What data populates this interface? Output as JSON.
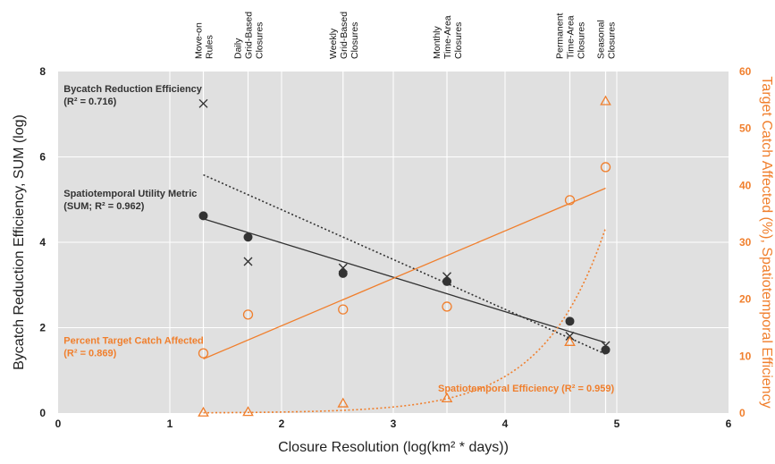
{
  "chart_data": {
    "type": "scatter",
    "xlabel": "Closure Resolution (log(km² * days))",
    "ylabel": "Bycatch Reduction Efficiency, SUM (log)",
    "y2label": "Target Catch Affected (%), Spatiotemporal Efficiency",
    "xlim": [
      0,
      6
    ],
    "ylim": [
      0,
      8
    ],
    "y2lim": [
      0,
      60
    ],
    "xticks": [
      "0",
      "1",
      "2",
      "3",
      "4",
      "5",
      "6"
    ],
    "yticks": [
      "0",
      "2",
      "4",
      "6",
      "8"
    ],
    "y2ticks": [
      "0",
      "10",
      "20",
      "30",
      "40",
      "50",
      "60"
    ],
    "grid": true,
    "colors": {
      "black": "#333333",
      "orange": "#f07f2d",
      "plot_bg": "#e0e0e0",
      "grid": "#ffffff"
    },
    "categories": [
      {
        "x": 1.3,
        "lines": [
          "Move-on",
          "Rules"
        ]
      },
      {
        "x": 1.7,
        "lines": [
          "Daily",
          "Grid-Based",
          "Closures"
        ]
      },
      {
        "x": 2.55,
        "lines": [
          "Weekly",
          "Grid-Based",
          "Closures"
        ]
      },
      {
        "x": 3.48,
        "lines": [
          "Monthly",
          "Time-Area",
          "Closures"
        ]
      },
      {
        "x": 4.58,
        "lines": [
          "Permanent",
          "Time-Area",
          "Closures"
        ]
      },
      {
        "x": 4.9,
        "lines": [
          "Seasonal",
          "Closures"
        ]
      }
    ],
    "series": [
      {
        "name": "Bycatch Reduction Efficiency",
        "axis": "left",
        "marker": "x",
        "color": "#333333",
        "x": [
          1.3,
          1.7,
          2.55,
          3.48,
          4.58,
          4.9
        ],
        "y": [
          7.25,
          3.55,
          3.4,
          3.2,
          1.8,
          1.58
        ],
        "trend": {
          "type": "linear",
          "style": "dotted",
          "x": [
            1.3,
            4.9
          ],
          "y": [
            5.58,
            1.38
          ]
        }
      },
      {
        "name": "Spatiotemporal Utility Metric",
        "axis": "left",
        "marker": "filled-circle",
        "color": "#333333",
        "x": [
          1.3,
          1.7,
          2.55,
          3.48,
          4.58,
          4.9
        ],
        "y": [
          4.62,
          4.12,
          3.27,
          3.08,
          2.15,
          1.48
        ],
        "trend": {
          "type": "linear",
          "style": "solid",
          "x": [
            1.3,
            4.9
          ],
          "y": [
            4.55,
            1.65
          ]
        }
      },
      {
        "name": "Percent Target Catch Affected",
        "axis": "right",
        "marker": "open-circle",
        "color": "#f07f2d",
        "x": [
          1.3,
          1.7,
          2.55,
          3.48,
          4.58,
          4.9
        ],
        "y": [
          10.5,
          17.3,
          18.2,
          18.7,
          37.4,
          43.2
        ],
        "trend": {
          "type": "linear",
          "style": "solid",
          "x": [
            1.3,
            4.9
          ],
          "y": [
            9.5,
            39.5
          ]
        }
      },
      {
        "name": "Spatiotemporal Efficiency",
        "axis": "right",
        "marker": "open-triangle",
        "color": "#f07f2d",
        "x": [
          1.3,
          1.7,
          2.55,
          3.48,
          4.58,
          4.9
        ],
        "y": [
          0.1,
          0.2,
          1.7,
          2.6,
          12.5,
          54.8
        ],
        "trend": {
          "type": "exponential",
          "style": "dotted",
          "x0": 1.3,
          "x1": 4.9,
          "y0": 0.05,
          "y1": 32.5
        }
      }
    ],
    "annotations": [
      {
        "id": "bycatch",
        "color": "#333333",
        "x": 0.05,
        "y": 7.52,
        "axis": "left",
        "lines": [
          "Bycatch Reduction Efficiency",
          "(R² = 0.716)"
        ]
      },
      {
        "id": "sum",
        "color": "#333333",
        "x": 0.05,
        "y": 5.07,
        "axis": "left",
        "lines": [
          "Spatiotemporal Utility Metric",
          "(SUM; R² = 0.962)"
        ]
      },
      {
        "id": "ptca",
        "color": "#f07f2d",
        "x": 0.05,
        "y": 1.62,
        "axis": "left",
        "lines": [
          "Percent Target Catch Affected",
          "(R² = 0.869)"
        ]
      },
      {
        "id": "ste",
        "color": "#f07f2d",
        "x": 3.4,
        "y": 0.5,
        "axis": "left",
        "lines": [
          "Spatiotemporal Efficiency (R² = 0.959)"
        ]
      }
    ]
  }
}
